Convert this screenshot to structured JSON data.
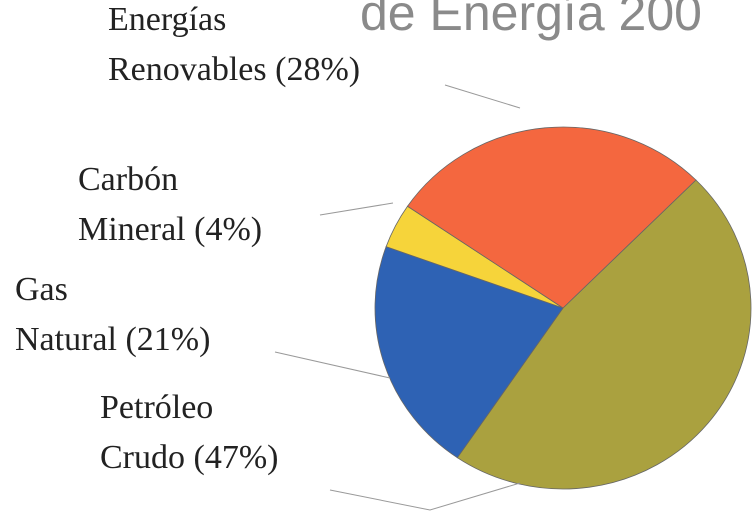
{
  "chart_data": {
    "type": "pie",
    "title": "de Energía 200",
    "labels": [
      [
        "Petróleo",
        "Crudo (47%)"
      ],
      [
        "Gas",
        "Natural (21%)"
      ],
      [
        "Carbón",
        "Mineral (4%)"
      ],
      [
        "Energías",
        "Renovables (28%)"
      ]
    ],
    "values": [
      47,
      21,
      4,
      28
    ],
    "colors": [
      "#aaa13f",
      "#2e62b4",
      "#f6d43a",
      "#f4673f"
    ]
  }
}
